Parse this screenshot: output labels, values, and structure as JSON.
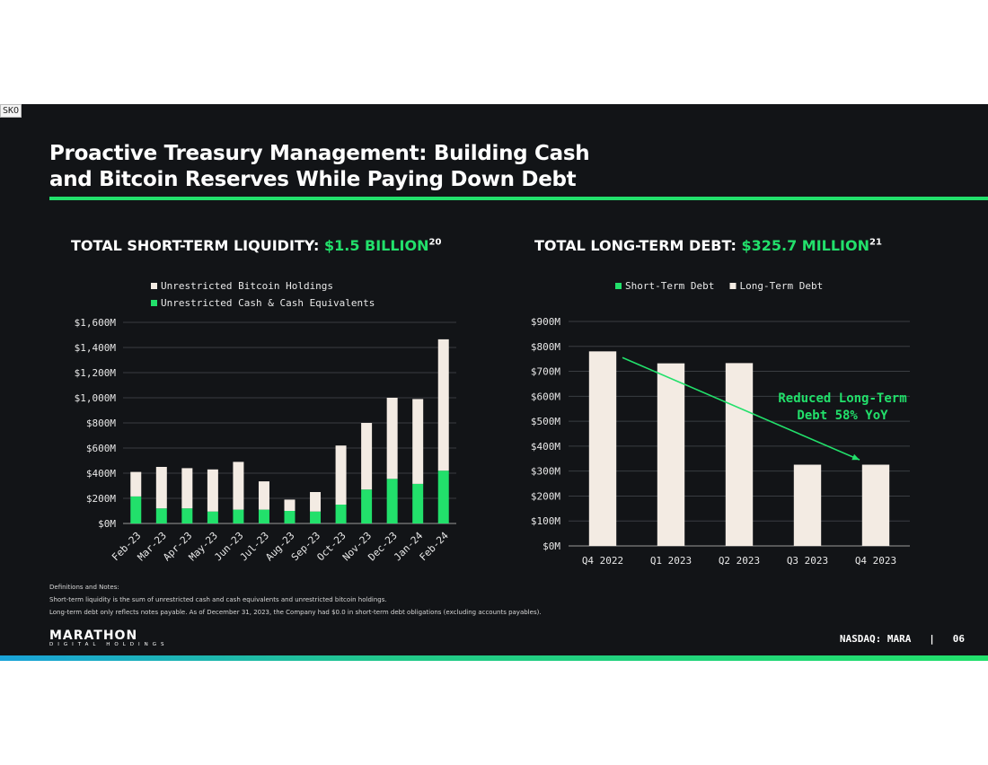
{
  "corner_tag": "SKO",
  "title": [
    "Proactive Treasury Management: Building Cash",
    "and Bitcoin Reserves While Paying Down Debt"
  ],
  "left_heading": {
    "prefix": "TOTAL SHORT-TERM LIQUIDITY: ",
    "value": "$1.5 BILLION",
    "sup": "20"
  },
  "right_heading": {
    "prefix": "TOTAL LONG-TERM DEBT: ",
    "value": "$325.7 MILLION",
    "sup": "21"
  },
  "notes": {
    "heading": "Definitions and Notes:",
    "line1": "Short-term liquidity is the sum of unrestricted cash and cash equivalents and unrestricted bitcoin holdings.",
    "line2": "Long-term debt only reflects notes payable. As of December 31, 2023, the Company had $0.0 in short-term debt obligations (excluding accounts payables)."
  },
  "logo": {
    "main": "MARATHON",
    "sub": "DIGITAL HOLDINGS"
  },
  "footer": {
    "ticker": "NASDAQ: MARA",
    "separator": "|",
    "page": "06"
  },
  "colors": {
    "background": "#121417",
    "green": "#22e06b",
    "cream": "#f3ebe3",
    "text": "#ffffff",
    "grid": "#3a3d42"
  },
  "chart_data": [
    {
      "type": "bar",
      "stacked": true,
      "categories": [
        "Feb-23",
        "Mar-23",
        "Apr-23",
        "May-23",
        "Jun-23",
        "Jul-23",
        "Aug-23",
        "Sep-23",
        "Oct-23",
        "Nov-23",
        "Dec-23",
        "Jan-24",
        "Feb-24"
      ],
      "series": [
        {
          "name": "Unrestricted Cash & Cash Equivalents",
          "color": "#22e06b",
          "values": [
            215,
            120,
            120,
            95,
            110,
            110,
            100,
            95,
            150,
            270,
            355,
            315,
            420
          ]
        },
        {
          "name": "Unrestricted Bitcoin Holdings",
          "color": "#f3ebe3",
          "values": [
            195,
            330,
            320,
            335,
            380,
            225,
            90,
            155,
            470,
            530,
            645,
            675,
            1045
          ]
        }
      ],
      "legend_order": [
        "Unrestricted Bitcoin Holdings",
        "Unrestricted Cash & Cash Equivalents"
      ],
      "y_ticks": [
        "$0M",
        "$200M",
        "$400M",
        "$600M",
        "$800M",
        "$1,000M",
        "$1,200M",
        "$1,400M",
        "$1,600M"
      ],
      "ylim": [
        0,
        1600
      ],
      "legend_position": "top",
      "grid": true
    },
    {
      "type": "bar",
      "stacked": true,
      "categories": [
        "Q4 2022",
        "Q1 2023",
        "Q2 2023",
        "Q3 2023",
        "Q4 2023"
      ],
      "series": [
        {
          "name": "Short-Term Debt",
          "color": "#22e06b",
          "values": [
            0,
            0,
            0,
            0,
            0
          ]
        },
        {
          "name": "Long-Term Debt",
          "color": "#f3ebe3",
          "values": [
            780,
            732,
            733,
            325.7,
            325.7
          ]
        }
      ],
      "y_ticks": [
        "$0M",
        "$100M",
        "$200M",
        "$300M",
        "$400M",
        "$500M",
        "$600M",
        "$700M",
        "$800M",
        "$900M"
      ],
      "ylim": [
        0,
        900
      ],
      "legend_position": "top",
      "grid": true,
      "annotation": {
        "lines": [
          "Reduced Long-Term",
          "Debt 58% YoY"
        ],
        "arrow_from": [
          "Q4 2022",
          755
        ],
        "arrow_to": [
          "Q4 2023",
          345
        ]
      }
    }
  ]
}
